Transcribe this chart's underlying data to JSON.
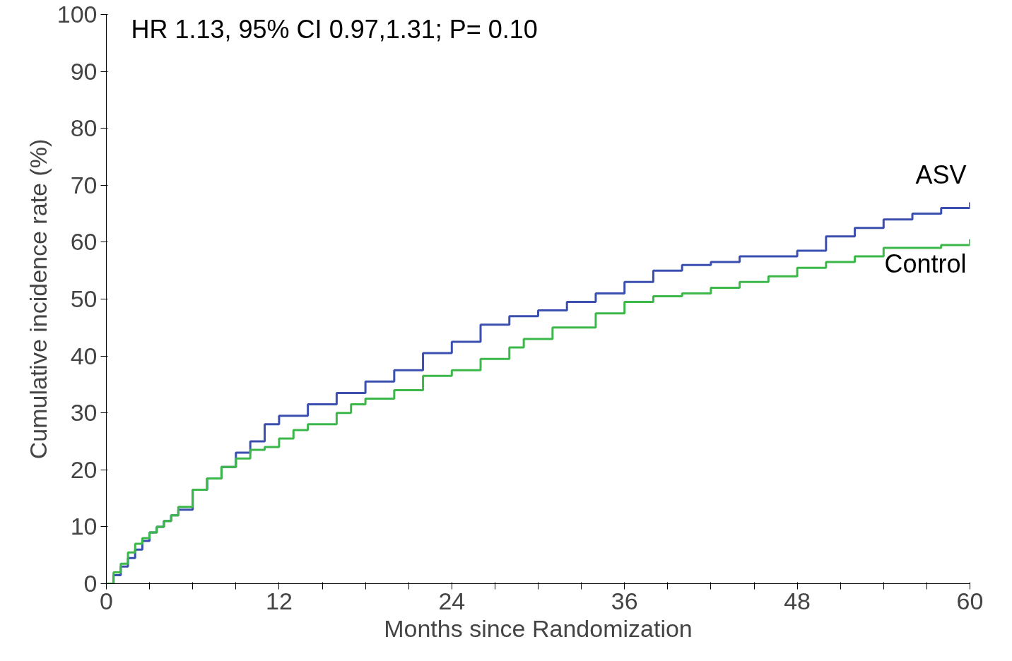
{
  "chart_data": {
    "type": "step",
    "xlabel": "Months since Randomization",
    "ylabel": "Cumulative incidence rate (%)",
    "annotations": [
      "HR 1.13, 95% CI 0.97,1.31; P= 0.10"
    ],
    "xlim": [
      0,
      60
    ],
    "ylim": [
      0,
      100
    ],
    "xticks": [
      0,
      {
        "value": 3,
        "label": null
      },
      {
        "value": 6,
        "label": null
      },
      {
        "value": 9,
        "label": null
      },
      12,
      {
        "value": 15,
        "label": null
      },
      {
        "value": 18,
        "label": null
      },
      {
        "value": 21,
        "label": null
      },
      24,
      {
        "value": 27,
        "label": null
      },
      {
        "value": 30,
        "label": null
      },
      {
        "value": 33,
        "label": null
      },
      36,
      {
        "value": 39,
        "label": null
      },
      {
        "value": 42,
        "label": null
      },
      {
        "value": 45,
        "label": null
      },
      48,
      {
        "value": 51,
        "label": null
      },
      {
        "value": 54,
        "label": null
      },
      {
        "value": 57,
        "label": null
      },
      60
    ],
    "yticks": [
      0,
      10,
      20,
      30,
      40,
      50,
      60,
      70,
      80,
      90,
      100
    ],
    "grid": false,
    "line_style": "solid",
    "marker": "none",
    "series": [
      {
        "name": "ASV",
        "color": "#3a4fb0",
        "x": [
          0,
          0.5,
          1,
          1.5,
          2,
          2.5,
          3,
          3.5,
          4,
          4.5,
          5,
          6,
          7,
          8,
          9,
          10,
          11,
          12,
          14,
          16,
          18,
          20,
          22,
          24,
          26,
          28,
          30,
          32,
          34,
          36,
          38,
          40,
          42,
          44,
          46,
          48,
          50,
          52,
          54,
          56,
          58,
          60
        ],
        "values": [
          0,
          1.5,
          3,
          4.5,
          6,
          7.5,
          9,
          10,
          11,
          12,
          13,
          16.5,
          18.5,
          20.5,
          23,
          25,
          28,
          29.5,
          31.5,
          33.5,
          35.5,
          37.5,
          40.5,
          42.5,
          45.5,
          47,
          48,
          49.5,
          51,
          53,
          55,
          56,
          56.5,
          57.5,
          57.5,
          58.5,
          61,
          62.5,
          64,
          65,
          66,
          67
        ]
      },
      {
        "name": "Control",
        "color": "#3cb84a",
        "x": [
          0,
          0.5,
          1,
          1.5,
          2,
          2.5,
          3,
          3.5,
          4,
          4.5,
          5,
          6,
          7,
          8,
          9,
          10,
          11,
          12,
          13,
          14,
          16,
          17,
          18,
          20,
          22,
          24,
          26,
          28,
          29,
          31,
          34,
          36,
          38,
          40,
          42,
          44,
          46,
          48,
          50,
          52,
          54,
          56,
          58,
          60
        ],
        "values": [
          0,
          2,
          3.5,
          5.5,
          7,
          8,
          9,
          10,
          11,
          12,
          13.5,
          16.5,
          18.5,
          20.5,
          22,
          23.5,
          24,
          25.5,
          27,
          28,
          30,
          31.5,
          32.5,
          34,
          36.5,
          37.5,
          39.5,
          41.5,
          43,
          45,
          47.5,
          49.5,
          50.5,
          51,
          52,
          53,
          54,
          55.5,
          56.5,
          57.5,
          59,
          59,
          59.5,
          60.5
        ]
      }
    ]
  }
}
